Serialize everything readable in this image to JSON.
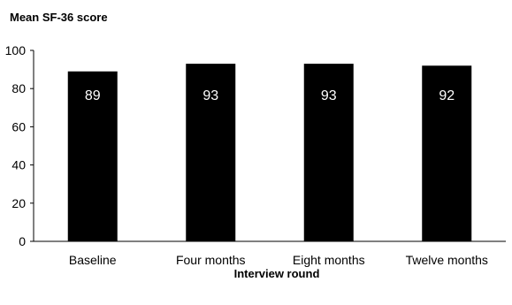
{
  "chart_data": {
    "type": "bar",
    "ylabel": "Mean SF-36 score",
    "xlabel": "Interview round",
    "categories": [
      "Baseline",
      "Four months",
      "Eight months",
      "Twelve months"
    ],
    "values": [
      89,
      93,
      93,
      92
    ],
    "data_labels": [
      "89",
      "93",
      "93",
      "92"
    ],
    "ylim": [
      0,
      100
    ],
    "yticks": [
      0,
      20,
      40,
      60,
      80,
      100
    ],
    "grid": false,
    "legend": false,
    "colors": {
      "bar": "#000000",
      "bar_label": "#ffffff",
      "axis": "#000000"
    }
  }
}
